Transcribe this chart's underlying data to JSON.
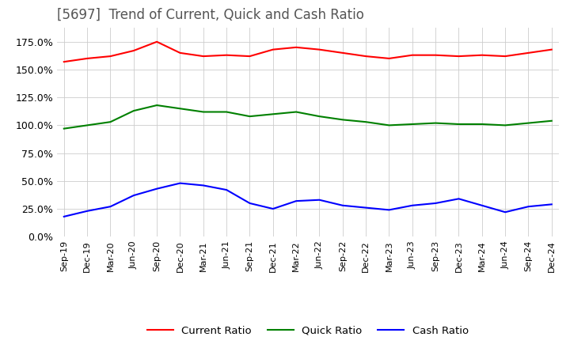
{
  "title": "[5697]  Trend of Current, Quick and Cash Ratio",
  "x_labels": [
    "Sep-19",
    "Dec-19",
    "Mar-20",
    "Jun-20",
    "Sep-20",
    "Dec-20",
    "Mar-21",
    "Jun-21",
    "Sep-21",
    "Dec-21",
    "Mar-22",
    "Jun-22",
    "Sep-22",
    "Dec-22",
    "Mar-23",
    "Jun-23",
    "Sep-23",
    "Dec-23",
    "Mar-24",
    "Jun-24",
    "Sep-24",
    "Dec-24"
  ],
  "current_ratio": [
    157,
    160,
    162,
    167,
    175,
    165,
    162,
    163,
    162,
    168,
    170,
    168,
    165,
    162,
    160,
    163,
    163,
    162,
    163,
    162,
    165,
    168
  ],
  "quick_ratio": [
    97,
    100,
    103,
    113,
    118,
    115,
    112,
    112,
    108,
    110,
    112,
    108,
    105,
    103,
    100,
    101,
    102,
    101,
    101,
    100,
    102,
    104
  ],
  "cash_ratio": [
    18,
    23,
    27,
    37,
    43,
    48,
    46,
    42,
    30,
    25,
    32,
    33,
    28,
    26,
    24,
    28,
    30,
    34,
    28,
    22,
    27,
    29
  ],
  "current_color": "#ff0000",
  "quick_color": "#008000",
  "cash_color": "#0000ff",
  "ylim": [
    0,
    187.5
  ],
  "yticks": [
    0,
    25,
    50,
    75,
    100,
    125,
    150,
    175
  ],
  "background_color": "#ffffff",
  "grid_color": "#cccccc",
  "title_fontsize": 12,
  "line_width": 1.5,
  "tick_fontsize": 8,
  "ytick_fontsize": 9
}
